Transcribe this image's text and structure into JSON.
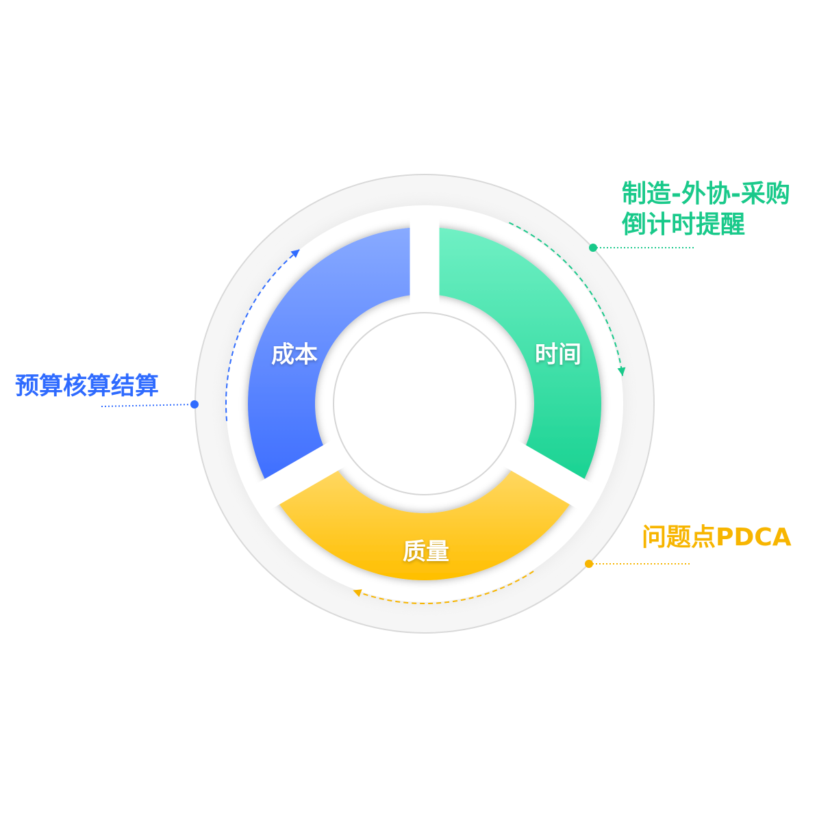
{
  "segments": [
    {
      "label": "成本",
      "color_top": "#88aaff",
      "color_bottom": "#3b6cff"
    },
    {
      "label": "时间",
      "color_top": "#70f0c4",
      "color_bottom": "#16d190"
    },
    {
      "label": "质量",
      "color_top": "#ffda6c",
      "color_bottom": "#ffbf00"
    }
  ],
  "annotations": {
    "cost": {
      "text": "预算核算结算",
      "color": "#2f6bff"
    },
    "time": {
      "line1": "制造-外协-采购",
      "line2": "倒计时提醒",
      "color": "#19c98a"
    },
    "quality": {
      "text": "问题点PDCA",
      "color": "#f7b500"
    }
  }
}
